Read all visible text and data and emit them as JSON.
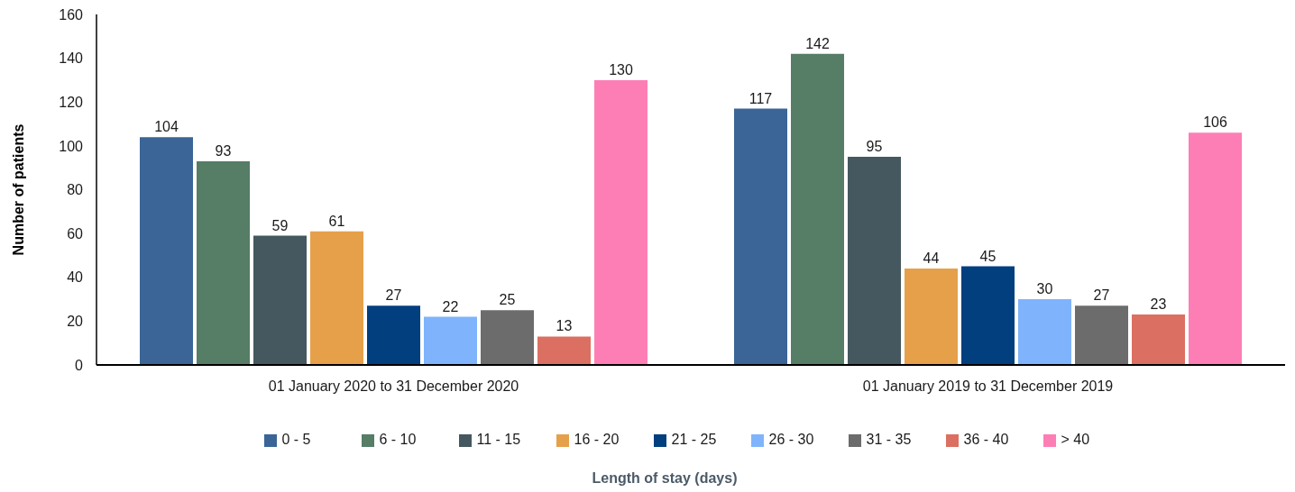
{
  "chart_data": {
    "type": "bar",
    "legend_title": "Length of stay (days)",
    "ylabel": "Number of patients",
    "categories": [
      "01 January 2020 to 31 December 2020",
      "01 January 2019 to 31 December 2019"
    ],
    "series": [
      {
        "name": "0 - 5",
        "color": "#3a6596",
        "values": [
          104,
          117
        ]
      },
      {
        "name": "6 - 10",
        "color": "#567d66",
        "values": [
          93,
          142
        ]
      },
      {
        "name": "11 - 15",
        "color": "#45585f",
        "values": [
          59,
          95
        ]
      },
      {
        "name": "16 - 20",
        "color": "#e6a04a",
        "values": [
          61,
          44
        ]
      },
      {
        "name": "21 - 25",
        "color": "#023f7f",
        "values": [
          27,
          45
        ]
      },
      {
        "name": "26 - 30",
        "color": "#7fb4fc",
        "values": [
          22,
          30
        ]
      },
      {
        "name": "31 - 35",
        "color": "#6c6c6c",
        "values": [
          25,
          27
        ]
      },
      {
        "name": "36 - 40",
        "color": "#db7062",
        "values": [
          13,
          23
        ]
      },
      {
        "name": "> 40",
        "color": "#fd7eb5",
        "values": [
          130,
          106
        ]
      }
    ],
    "ylim": [
      0,
      160
    ],
    "yticks": [
      0,
      20,
      40,
      60,
      80,
      100,
      120,
      140,
      160
    ],
    "legend": "bottom",
    "data_labels": true
  }
}
